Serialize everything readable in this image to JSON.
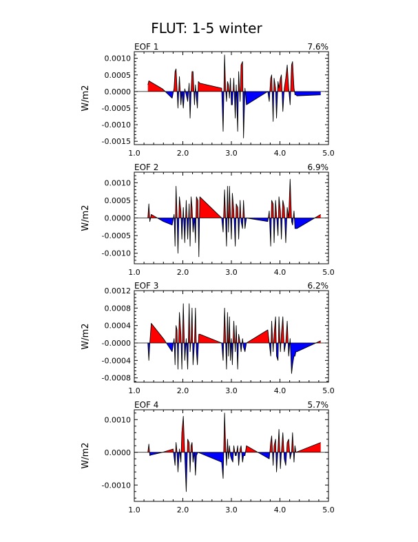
{
  "figure_title": "FLUT: 1-5 winter",
  "colors": {
    "positive": "#ff0000",
    "negative": "#0000ff",
    "line": "#000000"
  },
  "chart_data": [
    {
      "type": "area",
      "title": "EOF 1",
      "pct": "7.6%",
      "ylabel": "W/m2",
      "xlim": [
        1.0,
        5.0
      ],
      "ylim": [
        -0.0016,
        0.0012
      ],
      "xticks": [
        "1.0",
        "2.0",
        "3.0",
        "4.0",
        "5.0"
      ],
      "yticks": [
        "0.0010",
        "0.0005",
        "0.0000",
        "-0.0005",
        "-0.0010",
        "-0.0015"
      ],
      "ytick_values": [
        0.001,
        0.0005,
        0.0,
        -0.0005,
        -0.001,
        -0.0015
      ],
      "x": [
        1.28,
        1.3,
        1.58,
        1.78,
        1.82,
        1.84,
        1.86,
        1.88,
        1.9,
        1.93,
        1.96,
        1.98,
        2.01,
        2.04,
        2.07,
        2.1,
        2.13,
        2.15,
        2.17,
        2.19,
        2.21,
        2.24,
        2.26,
        2.28,
        2.3,
        2.32,
        2.35,
        2.8,
        2.83,
        2.86,
        2.88,
        2.9,
        2.92,
        2.94,
        2.96,
        2.98,
        3.0,
        3.02,
        3.05,
        3.08,
        3.1,
        3.13,
        3.15,
        3.18,
        3.2,
        3.23,
        3.25,
        3.28,
        3.31,
        3.75,
        3.78,
        3.81,
        3.83,
        3.86,
        3.88,
        3.91,
        3.93,
        3.96,
        3.98,
        4.01,
        4.03,
        4.06,
        4.09,
        4.12,
        4.15,
        4.18,
        4.21,
        4.24,
        4.26,
        4.29,
        4.31,
        4.33,
        4.35,
        4.84
      ],
      "y": [
        0.0002,
        0.00032,
        8e-05,
        -0.0002,
        0.0001,
        0.0006,
        0.00068,
        0.0001,
        -0.0005,
        0.00045,
        -0.0004,
        0.0,
        -0.0005,
        8e-05,
        -0.0001,
        -0.0003,
        0.00025,
        -0.0008,
        0.0,
        0.0006,
        0.0006,
        -0.0004,
        0.0002,
        -0.0002,
        -0.0005,
        0.0003,
        0.00025,
        0.0001,
        -0.0012,
        0.0011,
        0.0001,
        -0.0003,
        0.0003,
        0.0002,
        -0.0002,
        0.0004,
        -0.0004,
        -0.0004,
        0.0004,
        -0.0008,
        0.0002,
        -0.0012,
        0.0006,
        -0.0003,
        0.0008,
        0.0009,
        -0.0014,
        0.0001,
        -0.0004,
        0.0,
        -0.0003,
        0.0004,
        0.0005,
        -0.0009,
        0.0004,
        0.0001,
        -0.0008,
        0.0003,
        0.0001,
        0.0004,
        0.0005,
        -0.0006,
        0.0001,
        0.0004,
        0.0008,
        0.0001,
        -0.0004,
        0.0008,
        0.0009,
        0.0001,
        -0.0001,
        -0.0001,
        -0.00013,
        -0.0001
      ]
    },
    {
      "type": "area",
      "title": "EOF 2",
      "pct": "6.9%",
      "ylabel": "W/m2",
      "xlim": [
        1.0,
        5.0
      ],
      "ylim": [
        -0.0013,
        0.0013
      ],
      "xticks": [
        "1.0",
        "2.0",
        "3.0",
        "4.0",
        "5.0"
      ],
      "yticks": [
        "0.0010",
        "0.0005",
        "0.0000",
        "-0.0005",
        "-0.0010"
      ],
      "ytick_values": [
        0.001,
        0.0005,
        0.0,
        -0.0005,
        -0.001
      ],
      "x": [
        1.28,
        1.3,
        1.32,
        1.35,
        1.6,
        1.78,
        1.82,
        1.84,
        1.86,
        1.88,
        1.9,
        1.93,
        1.96,
        1.98,
        2.01,
        2.04,
        2.07,
        2.1,
        2.13,
        2.15,
        2.17,
        2.19,
        2.21,
        2.24,
        2.26,
        2.28,
        2.31,
        2.33,
        2.35,
        2.8,
        2.83,
        2.86,
        2.88,
        2.9,
        2.92,
        2.94,
        2.96,
        2.98,
        3.0,
        3.02,
        3.05,
        3.08,
        3.1,
        3.13,
        3.15,
        3.18,
        3.2,
        3.23,
        3.25,
        3.28,
        3.31,
        3.75,
        3.78,
        3.81,
        3.83,
        3.86,
        3.88,
        3.91,
        3.93,
        3.96,
        3.98,
        4.01,
        4.03,
        4.06,
        4.09,
        4.12,
        4.15,
        4.18,
        4.21,
        4.24,
        4.26,
        4.29,
        4.31,
        4.33,
        4.35,
        4.84
      ],
      "y": [
        0.0,
        0.0004,
        -0.0001,
        0.0001,
        -0.0001,
        -0.0002,
        0.0001,
        -0.0008,
        0.0009,
        0.0001,
        -0.001,
        0.0006,
        0.0002,
        -0.0006,
        0.0003,
        -0.0007,
        0.0005,
        -0.0006,
        0.0004,
        -0.0008,
        0.0006,
        0.0003,
        -0.0004,
        0.0,
        -0.0007,
        0.0006,
        0.0005,
        -0.0011,
        0.0006,
        0.0,
        -0.0004,
        0.0008,
        0.0,
        -0.0008,
        0.0009,
        -0.0004,
        0.0009,
        0.0001,
        -0.0006,
        0.0007,
        0.0002,
        -0.0008,
        0.0004,
        0.0003,
        -0.0006,
        0.0005,
        -0.0001,
        -0.0003,
        0.0005,
        -0.0003,
        0.0,
        -0.0001,
        0.0002,
        -0.0008,
        0.0005,
        0.0004,
        -0.0007,
        0.0005,
        0.0001,
        -0.0005,
        0.0006,
        0.0002,
        -0.0006,
        0.0005,
        0.0003,
        -0.0007,
        0.0003,
        0.0,
        0.0011,
        -0.0001,
        -0.0002,
        0.0002,
        -0.0003,
        -0.0003,
        -0.0003,
        0.0001
      ]
    },
    {
      "type": "area",
      "title": "EOF 3",
      "pct": "6.2%",
      "ylabel": "W/m2",
      "xlim": [
        1.0,
        5.0
      ],
      "ylim": [
        -0.0009,
        0.0012
      ],
      "xticks": [
        "1.0",
        "2.0",
        "3.0",
        "4.0",
        "5.0"
      ],
      "yticks": [
        "0.0012",
        "0.0008",
        "0.0004",
        "-0.0000",
        "-0.0004",
        "-0.0008"
      ],
      "ytick_values": [
        0.0012,
        0.0008,
        0.0004,
        0.0,
        -0.0004,
        -0.0008
      ],
      "x": [
        1.28,
        1.3,
        1.32,
        1.35,
        1.6,
        1.78,
        1.82,
        1.84,
        1.86,
        1.88,
        1.9,
        1.93,
        1.96,
        1.98,
        2.01,
        2.04,
        2.07,
        2.1,
        2.13,
        2.15,
        2.17,
        2.19,
        2.21,
        2.24,
        2.26,
        2.28,
        2.3,
        2.33,
        2.35,
        2.8,
        2.83,
        2.86,
        2.88,
        2.9,
        2.92,
        2.94,
        2.96,
        2.98,
        3.0,
        3.02,
        3.05,
        3.08,
        3.1,
        3.13,
        3.15,
        3.18,
        3.2,
        3.23,
        3.25,
        3.28,
        3.31,
        3.75,
        3.78,
        3.81,
        3.83,
        3.86,
        3.88,
        3.91,
        3.93,
        3.96,
        3.98,
        4.01,
        4.03,
        4.06,
        4.09,
        4.12,
        4.15,
        4.18,
        4.21,
        4.24,
        4.26,
        4.29,
        4.31,
        4.33,
        4.35,
        4.84
      ],
      "y": [
        0.0,
        -0.0004,
        0.0,
        0.00045,
        0.0001,
        -0.0002,
        0.0001,
        -0.0005,
        0.0004,
        0.0003,
        -0.0006,
        0.0007,
        0.0002,
        -0.0006,
        0.0009,
        -0.0004,
        0.0001,
        -0.0006,
        0.0009,
        -0.0002,
        0.0001,
        0.0008,
        -0.0005,
        0.0,
        0.0008,
        -0.0002,
        -0.0005,
        0.0002,
        0.0002,
        0.0,
        -0.0004,
        0.0008,
        0.0001,
        -0.0006,
        0.0007,
        -0.0003,
        0.0006,
        -0.0004,
        0.0001,
        -0.0005,
        0.0005,
        -0.0002,
        0.0004,
        -0.0006,
        0.0002,
        0.0,
        -0.0002,
        0.0001,
        -0.0001,
        -0.0002,
        0.0,
        0.0003,
        0.0,
        -0.0003,
        0.0005,
        -0.0002,
        0.0002,
        0.0006,
        -0.0003,
        -0.0004,
        0.0006,
        -0.0002,
        0.0002,
        0.0006,
        -0.0002,
        0.0,
        0.0005,
        -0.0003,
        0.0001,
        -0.0007,
        -0.0005,
        -0.0003,
        -0.0003,
        -0.0002,
        -0.0002,
        5e-05
      ]
    },
    {
      "type": "area",
      "title": "EOF 4",
      "pct": "5.7%",
      "ylabel": "W/m2",
      "xlim": [
        1.0,
        5.0
      ],
      "ylim": [
        -0.0015,
        0.0013
      ],
      "xticks": [
        "1.0",
        "2.0",
        "3.0",
        "4.0",
        "5.0"
      ],
      "yticks": [
        "0.0010",
        "0.0000",
        "-0.0010"
      ],
      "ytick_values": [
        0.001,
        0.0,
        -0.001
      ],
      "x": [
        1.28,
        1.3,
        1.32,
        1.35,
        1.58,
        1.8,
        1.84,
        1.86,
        1.88,
        1.9,
        1.93,
        1.96,
        1.98,
        2.01,
        2.04,
        2.07,
        2.1,
        2.13,
        2.15,
        2.17,
        2.19,
        2.21,
        2.24,
        2.26,
        2.28,
        2.31,
        2.8,
        2.83,
        2.86,
        2.88,
        2.9,
        2.92,
        2.94,
        2.96,
        2.98,
        3.0,
        3.03,
        3.05,
        3.08,
        3.1,
        3.13,
        3.15,
        3.18,
        3.2,
        3.23,
        3.25,
        3.28,
        3.31,
        3.78,
        3.81,
        3.83,
        3.86,
        3.88,
        3.91,
        3.93,
        3.96,
        3.98,
        4.01,
        4.03,
        4.06,
        4.09,
        4.12,
        4.15,
        4.18,
        4.21,
        4.24,
        4.26,
        4.29,
        4.31,
        4.33,
        4.84
      ],
      "y": [
        0.0,
        0.00025,
        -0.0001,
        -8e-05,
        0.0,
        0.0001,
        -0.0004,
        0.0003,
        0.0,
        -0.0006,
        0.0001,
        -0.0003,
        0.0006,
        0.0011,
        -0.0001,
        -0.0012,
        0.0004,
        0.0003,
        -0.0006,
        0.0002,
        0.0003,
        -0.0003,
        0.0,
        -0.0007,
        -0.0001,
        0.0,
        -0.0003,
        -0.0008,
        0.0012,
        0.0002,
        -0.0004,
        0.0004,
        -0.0002,
        0.0002,
        -0.0001,
        -0.0002,
        -0.0003,
        0.0002,
        -0.0001,
        -0.0001,
        0.0002,
        -0.0004,
        0.0001,
        0.0002,
        -0.0003,
        -0.0001,
        -0.0001,
        0.0002,
        -0.0002,
        0.0003,
        0.0005,
        -0.0004,
        0.0002,
        0.0004,
        -0.0006,
        0.0001,
        0.0007,
        -0.0005,
        0.0,
        0.0006,
        -0.0002,
        -0.0004,
        0.0003,
        0.0004,
        -0.0002,
        0.0,
        0.0006,
        -0.0003,
        0.0002,
        0.0,
        0.0003
      ]
    }
  ]
}
